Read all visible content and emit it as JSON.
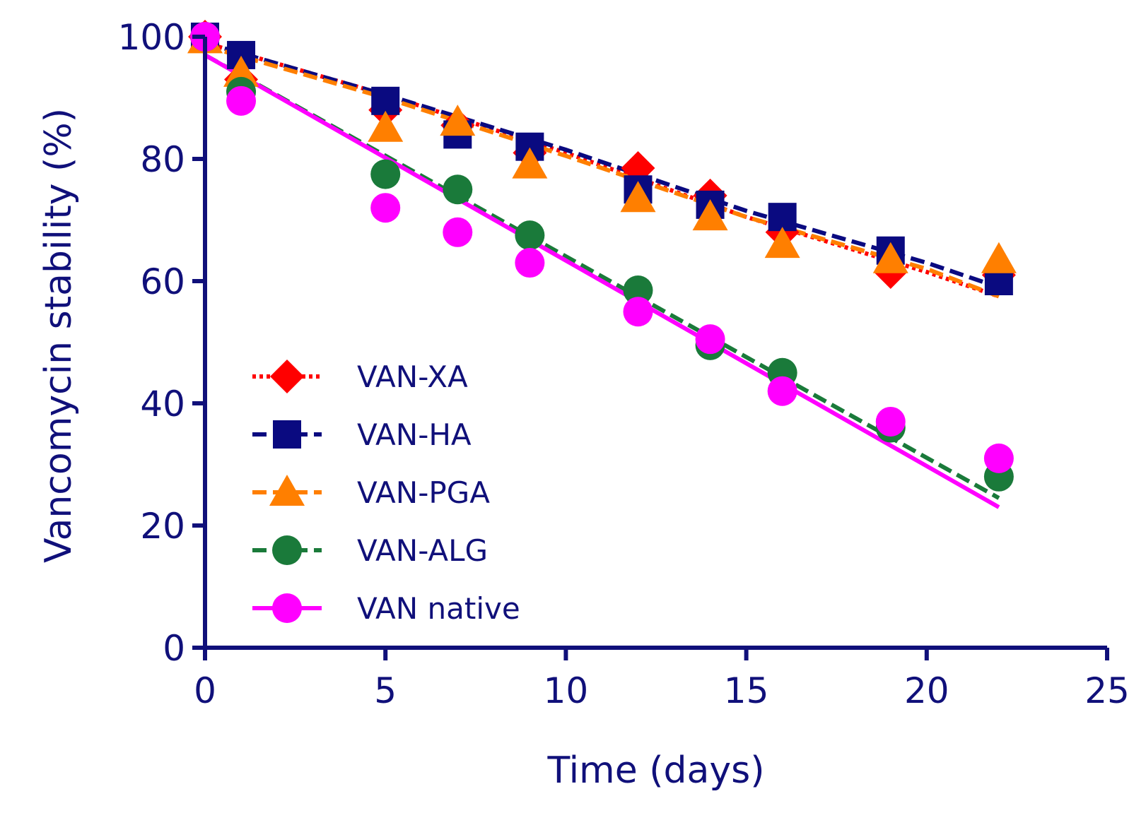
{
  "chart_data": {
    "type": "scatter",
    "title": "",
    "xlabel": "Time (days)",
    "ylabel": "Vancomycin stability (%)",
    "xlim": [
      0,
      25
    ],
    "ylim": [
      0,
      100
    ],
    "xticks": [
      0,
      5,
      10,
      15,
      20,
      25
    ],
    "yticks": [
      0,
      20,
      40,
      60,
      80,
      100
    ],
    "xtick_labels": [
      "0",
      "5",
      "10",
      "15",
      "20",
      "25"
    ],
    "ytick_labels": [
      "0",
      "20",
      "40",
      "60",
      "80",
      "100"
    ],
    "grid": false,
    "legend_position": "bottom-left",
    "series": [
      {
        "name": "VAN-XA",
        "marker": "diamond",
        "color": "#ff0000",
        "line_style": "dotted",
        "x": [
          0,
          1,
          5,
          7,
          9,
          12,
          14,
          16,
          19,
          22
        ],
        "values": [
          100,
          93,
          88,
          85.5,
          81,
          78.5,
          74,
          68,
          61.5,
          61
        ],
        "fit": {
          "x": [
            0,
            5,
            10,
            15,
            20,
            22
          ],
          "y": [
            99,
            90.5,
            81,
            70.5,
            61.5,
            57.5
          ]
        }
      },
      {
        "name": "VAN-HA",
        "marker": "square",
        "color": "#0a0a80",
        "line_style": "dashed",
        "x": [
          0,
          1,
          5,
          7,
          9,
          12,
          14,
          16,
          19,
          22
        ],
        "values": [
          100,
          97,
          89.5,
          84,
          82,
          75,
          72.5,
          70.5,
          65,
          60
        ],
        "fit": {
          "x": [
            0,
            5,
            10,
            15,
            20,
            22
          ],
          "y": [
            99,
            90.5,
            81.5,
            71.5,
            63,
            59
          ]
        }
      },
      {
        "name": "VAN-PGA",
        "marker": "triangle",
        "color": "#ff7f00",
        "line_style": "dashed",
        "x": [
          0,
          1,
          5,
          7,
          9,
          12,
          14,
          16,
          19,
          22
        ],
        "values": [
          99.5,
          94,
          85,
          86,
          79,
          73.5,
          70.5,
          66,
          63.5,
          63.5
        ],
        "fit": {
          "x": [
            0,
            5,
            10,
            15,
            20,
            22
          ],
          "y": [
            98.5,
            90,
            80.5,
            70.5,
            62,
            57.5
          ]
        }
      },
      {
        "name": "VAN-ALG",
        "marker": "circle",
        "color": "#1a7a3a",
        "line_style": "dashed",
        "x": [
          0,
          1,
          5,
          7,
          9,
          12,
          14,
          16,
          19,
          22
        ],
        "values": [
          100,
          91,
          77.5,
          75,
          67.5,
          58.5,
          49.5,
          45,
          36,
          28
        ],
        "fit": {
          "x": [
            0,
            22
          ],
          "y": [
            97,
            24.5
          ]
        }
      },
      {
        "name": "VAN native",
        "marker": "circle",
        "color": "#ff00ff",
        "line_style": "solid",
        "x": [
          0,
          1,
          5,
          7,
          9,
          12,
          14,
          16,
          19,
          22
        ],
        "values": [
          100,
          89.5,
          72,
          68,
          63,
          55,
          50.5,
          42,
          37,
          31
        ],
        "fit": {
          "x": [
            0,
            22
          ],
          "y": [
            97,
            23
          ]
        }
      }
    ]
  }
}
